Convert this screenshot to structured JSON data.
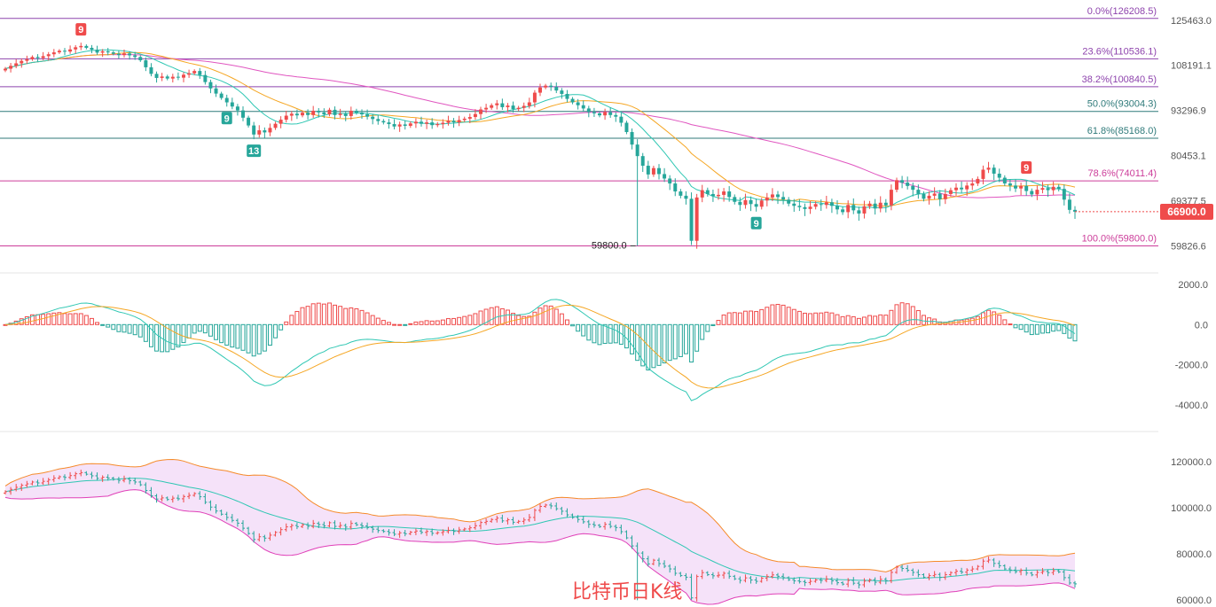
{
  "caption": "比特币日K线",
  "colors": {
    "up": "#ef4b4b",
    "down": "#26a69a",
    "ma_fast": "#2fc7b3",
    "ma_mid": "#f5a623",
    "ma_slow": "#e056c0",
    "fib_a": "#8e44ad",
    "fib_b": "#cc3d9a",
    "fib_c": "#2f7a7a",
    "band_fill": "#f3ddf8",
    "band_upper": "#f58a2a",
    "band_lower": "#e040b8"
  },
  "chart_data": [
    {
      "type": "candlestick",
      "y_axis_ticks": [
        "125463.0",
        "108191.1",
        "93296.9",
        "80453.1",
        "69377.5",
        "59826.6"
      ],
      "ylim": [
        56000,
        131000
      ],
      "current_price": "66900.0",
      "fibonacci": [
        {
          "label": "0.0%(126208.5)",
          "value": 126208.5
        },
        {
          "label": "23.6%(110536.1)",
          "value": 110536.1
        },
        {
          "label": "38.2%(100840.5)",
          "value": 100840.5
        },
        {
          "label": "50.0%(93004.3)",
          "value": 93004.3
        },
        {
          "label": "61.8%(85168.0)",
          "value": 85168.0
        },
        {
          "label": "78.6%(74011.4)",
          "value": 74011.4
        },
        {
          "label": "100.0%(59800.0)",
          "value": 59800.0
        }
      ],
      "low_annotation": "59800.0",
      "markers": [
        {
          "text": "9",
          "i": 14,
          "kind": "up"
        },
        {
          "text": "9",
          "i": 41,
          "kind": "down"
        },
        {
          "text": "13",
          "i": 46,
          "kind": "down"
        },
        {
          "text": "9",
          "i": 139,
          "kind": "down"
        },
        {
          "text": "9",
          "i": 189,
          "kind": "up"
        }
      ],
      "closes": [
        107000,
        108000,
        108900,
        109800,
        110400,
        111200,
        110800,
        111500,
        112200,
        112900,
        113500,
        113200,
        114000,
        114800,
        115300,
        114600,
        113900,
        112800,
        113300,
        112900,
        112400,
        111900,
        112500,
        111800,
        111200,
        110000,
        107500,
        105200,
        103800,
        104300,
        103600,
        104200,
        103900,
        104900,
        105400,
        106200,
        104800,
        102400,
        100300,
        98600,
        97200,
        95800,
        94500,
        93300,
        91100,
        88800,
        86200,
        87400,
        86800,
        88100,
        89300,
        90500,
        91700,
        92300,
        91800,
        92600,
        91900,
        93200,
        92700,
        92100,
        93500,
        91900,
        92300,
        91600,
        93200,
        92600,
        92100,
        91400,
        90700,
        90100,
        89700,
        89200,
        88500,
        89100,
        88700,
        89400,
        89900,
        89300,
        89700,
        88900,
        89200,
        89600,
        90200,
        89700,
        90400,
        90800,
        91300,
        92200,
        93600,
        94100,
        94900,
        95500,
        94300,
        94800,
        93700,
        94100,
        94700,
        95800,
        98900,
        100600,
        101200,
        100800,
        99600,
        98500,
        96900,
        95800,
        94900,
        93900,
        92800,
        92400,
        91800,
        92800,
        91900,
        91400,
        89600,
        86900,
        83400,
        80300,
        77800,
        75600,
        77200,
        75700,
        74600,
        73400,
        71500,
        70500,
        69800,
        60800,
        70100,
        71800,
        70900,
        70400,
        70700,
        71500,
        70200,
        69100,
        68400,
        69500,
        68600,
        68000,
        69400,
        70100,
        70800,
        70200,
        69600,
        68700,
        68200,
        67900,
        67500,
        68000,
        68600,
        68400,
        69000,
        68200,
        67400,
        66800,
        68400,
        67200,
        66500,
        68100,
        68700,
        67600,
        68900,
        68300,
        71900,
        74200,
        73600,
        72800,
        71900,
        70900,
        69800,
        70500,
        71000,
        69700,
        70900,
        71800,
        72400,
        72000,
        72900,
        73400,
        74500,
        76800,
        77300,
        75800,
        74800,
        73400,
        72900,
        72200,
        72800,
        71600,
        70800,
        71900,
        72300,
        71800,
        72600,
        72100,
        69600,
        67300,
        66900
      ],
      "candle_min_i": 117,
      "macd": {
        "y_axis_ticks": [
          "2000.0",
          "0.0",
          "-2000.0",
          "-4000.0"
        ],
        "ylim": [
          -5200,
          2400
        ]
      },
      "bollinger": {
        "y_axis_ticks": [
          "120000.0",
          "100000.0",
          "80000.0",
          "60000.0"
        ],
        "ylim": [
          58000,
          132000
        ]
      }
    }
  ]
}
